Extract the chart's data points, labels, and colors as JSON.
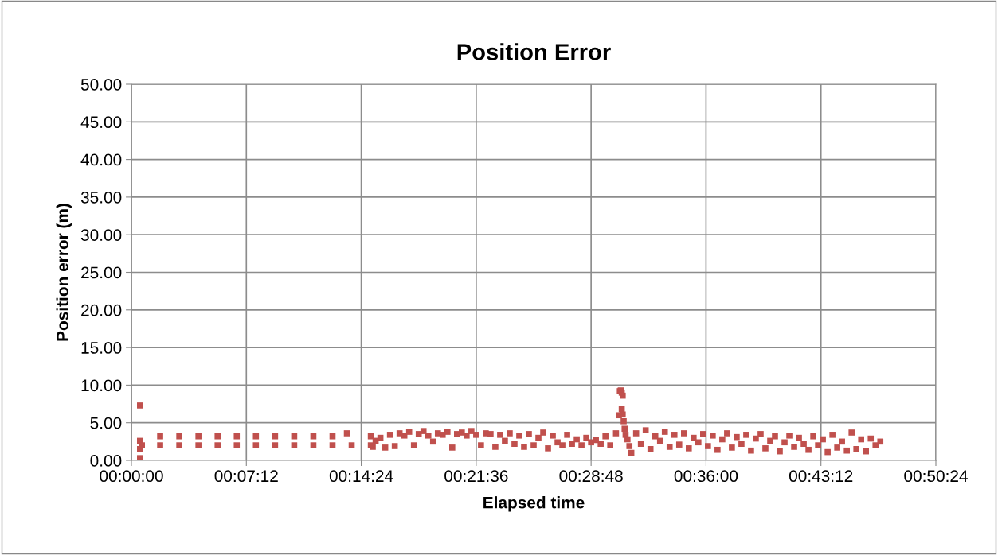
{
  "chart_data": {
    "type": "scatter",
    "title": "Position Error",
    "xlabel": "Elapsed time",
    "ylabel": "Position error (m)",
    "xlim": [
      0,
      0.84
    ],
    "xticks": [
      {
        "value": 0,
        "label": "00:00:00"
      },
      {
        "value": 0.12,
        "label": "00:07:12"
      },
      {
        "value": 0.24,
        "label": "00:14:24"
      },
      {
        "value": 0.36,
        "label": "00:21:36"
      },
      {
        "value": 0.48,
        "label": "00:28:48"
      },
      {
        "value": 0.6,
        "label": "00:36:00"
      },
      {
        "value": 0.72,
        "label": "00:43:12"
      },
      {
        "value": 0.84,
        "label": "00:50:24"
      }
    ],
    "ylim": [
      0,
      50
    ],
    "yticks": [
      {
        "value": 0,
        "label": "0.00"
      },
      {
        "value": 5,
        "label": "5.00"
      },
      {
        "value": 10,
        "label": "10.00"
      },
      {
        "value": 15,
        "label": "15.00"
      },
      {
        "value": 20,
        "label": "20.00"
      },
      {
        "value": 25,
        "label": "25.00"
      },
      {
        "value": 30,
        "label": "30.00"
      },
      {
        "value": 35,
        "label": "35.00"
      },
      {
        "value": 40,
        "label": "40.00"
      },
      {
        "value": 45,
        "label": "45.00"
      },
      {
        "value": 50,
        "label": "50.00"
      }
    ],
    "grid": true,
    "marker": "square",
    "series": [
      {
        "color": "#c0504d",
        "x": [
          0.009,
          0.009,
          0.009,
          0.009,
          0.011,
          0.03,
          0.05,
          0.07,
          0.09,
          0.11,
          0.13,
          0.15,
          0.17,
          0.19,
          0.21,
          0.23,
          0.25,
          0.03,
          0.05,
          0.07,
          0.09,
          0.11,
          0.13,
          0.15,
          0.17,
          0.19,
          0.21,
          0.225,
          0.25,
          0.252,
          0.255,
          0.26,
          0.265,
          0.27,
          0.275,
          0.28,
          0.285,
          0.29,
          0.295,
          0.3,
          0.305,
          0.31,
          0.315,
          0.32,
          0.325,
          0.33,
          0.335,
          0.34,
          0.345,
          0.35,
          0.355,
          0.36,
          0.365,
          0.37,
          0.375,
          0.38,
          0.385,
          0.39,
          0.395,
          0.4,
          0.405,
          0.41,
          0.415,
          0.42,
          0.425,
          0.43,
          0.435,
          0.44,
          0.445,
          0.45,
          0.455,
          0.46,
          0.465,
          0.47,
          0.475,
          0.48,
          0.485,
          0.49,
          0.495,
          0.5,
          0.506,
          0.509,
          0.51,
          0.511,
          0.512,
          0.513,
          0.512,
          0.513,
          0.514,
          0.515,
          0.516,
          0.518,
          0.52,
          0.522,
          0.527,
          0.532,
          0.537,
          0.542,
          0.547,
          0.552,
          0.557,
          0.562,
          0.567,
          0.572,
          0.577,
          0.582,
          0.587,
          0.592,
          0.597,
          0.602,
          0.607,
          0.612,
          0.617,
          0.622,
          0.627,
          0.632,
          0.637,
          0.642,
          0.647,
          0.652,
          0.657,
          0.662,
          0.667,
          0.672,
          0.677,
          0.682,
          0.687,
          0.692,
          0.697,
          0.702,
          0.707,
          0.712,
          0.717,
          0.722,
          0.727,
          0.732,
          0.737,
          0.742,
          0.747,
          0.752,
          0.757,
          0.762,
          0.767,
          0.772,
          0.777,
          0.782
        ],
        "values": [
          7.3,
          2.6,
          1.5,
          0.3,
          2.0,
          2.0,
          2.0,
          2.0,
          2.0,
          2.0,
          2.0,
          2.0,
          2.0,
          2.0,
          2.0,
          2.0,
          2.0,
          3.2,
          3.2,
          3.2,
          3.2,
          3.2,
          3.2,
          3.2,
          3.2,
          3.2,
          3.2,
          3.6,
          3.2,
          1.8,
          2.6,
          3.0,
          1.7,
          3.4,
          1.9,
          3.6,
          3.3,
          3.8,
          2.0,
          3.5,
          3.9,
          3.3,
          2.5,
          3.6,
          3.4,
          3.8,
          1.7,
          3.5,
          3.7,
          3.3,
          3.9,
          3.4,
          2.0,
          3.6,
          3.5,
          1.8,
          3.4,
          2.6,
          3.6,
          2.2,
          3.3,
          1.8,
          3.5,
          2.0,
          3.0,
          3.7,
          1.6,
          3.3,
          2.4,
          2.0,
          3.4,
          2.2,
          2.8,
          2.0,
          3.0,
          2.4,
          2.7,
          2.2,
          3.2,
          2.0,
          3.6,
          6.0,
          9.2,
          9.3,
          9.0,
          8.6,
          6.8,
          6.1,
          5.2,
          4.2,
          3.4,
          2.8,
          1.9,
          1.0,
          3.6,
          2.2,
          4.0,
          1.5,
          3.2,
          2.6,
          3.8,
          1.8,
          3.4,
          2.1,
          3.6,
          1.6,
          3.0,
          2.4,
          3.5,
          1.9,
          3.3,
          1.4,
          2.8,
          3.6,
          1.7,
          3.1,
          2.2,
          3.4,
          1.3,
          2.9,
          3.5,
          1.6,
          2.6,
          3.2,
          1.2,
          2.4,
          3.3,
          1.8,
          3.0,
          2.2,
          1.4,
          3.2,
          2.0,
          2.8,
          1.1,
          3.4,
          1.7,
          2.5,
          1.3,
          3.7,
          1.5,
          2.8,
          1.2,
          2.9,
          2.0,
          2.5
        ]
      }
    ]
  }
}
